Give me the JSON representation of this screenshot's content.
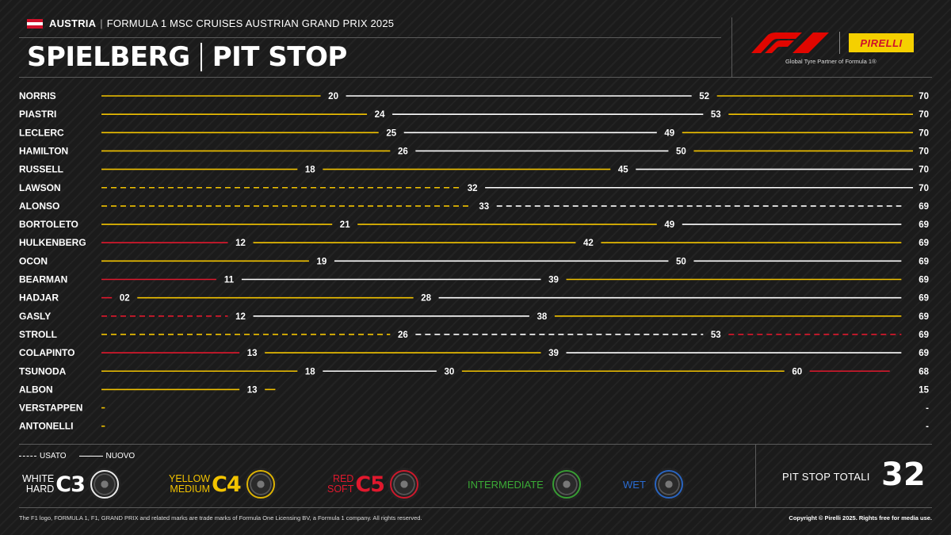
{
  "header": {
    "country": "AUSTRIA",
    "separator": "|",
    "event": "FORMULA 1 MSC CRUISES AUSTRIAN GRAND PRIX 2025",
    "title_left": "SPIELBERG",
    "title_right": "PIT STOP"
  },
  "brand": {
    "partner_label": "PIRELLI",
    "tagline": "Global Tyre Partner of Formula 1®"
  },
  "colors": {
    "hard": "#ffffff",
    "medium": "#f2c300",
    "soft": "#e0182d",
    "intermediate": "#3aaa35",
    "wet": "#2a6bd1"
  },
  "chart_data": {
    "type": "pit-stop-strategy",
    "x_range": [
      0,
      70
    ],
    "drivers": [
      {
        "name": "NORRIS",
        "stints": [
          {
            "compound": "medium",
            "used": false,
            "end": 20
          },
          {
            "compound": "hard",
            "used": false,
            "end": 52
          },
          {
            "compound": "medium",
            "used": false,
            "end": 70
          }
        ],
        "labels": [
          "20",
          "52",
          "70"
        ]
      },
      {
        "name": "PIASTRI",
        "stints": [
          {
            "compound": "medium",
            "used": false,
            "end": 24
          },
          {
            "compound": "hard",
            "used": false,
            "end": 53
          },
          {
            "compound": "medium",
            "used": false,
            "end": 70
          }
        ],
        "labels": [
          "24",
          "53",
          "70"
        ]
      },
      {
        "name": "LECLERC",
        "stints": [
          {
            "compound": "medium",
            "used": false,
            "end": 25
          },
          {
            "compound": "hard",
            "used": false,
            "end": 49
          },
          {
            "compound": "medium",
            "used": false,
            "end": 70
          }
        ],
        "labels": [
          "25",
          "49",
          "70"
        ]
      },
      {
        "name": "HAMILTON",
        "stints": [
          {
            "compound": "medium",
            "used": false,
            "end": 26
          },
          {
            "compound": "hard",
            "used": false,
            "end": 50
          },
          {
            "compound": "medium",
            "used": false,
            "end": 70
          }
        ],
        "labels": [
          "26",
          "50",
          "70"
        ]
      },
      {
        "name": "RUSSELL",
        "stints": [
          {
            "compound": "medium",
            "used": false,
            "end": 18
          },
          {
            "compound": "medium",
            "used": false,
            "end": 45
          },
          {
            "compound": "hard",
            "used": false,
            "end": 70
          }
        ],
        "labels": [
          "18",
          "45",
          "70"
        ]
      },
      {
        "name": "LAWSON",
        "stints": [
          {
            "compound": "medium",
            "used": true,
            "end": 32
          },
          {
            "compound": "hard",
            "used": false,
            "end": 70
          }
        ],
        "labels": [
          "32",
          "70"
        ]
      },
      {
        "name": "ALONSO",
        "stints": [
          {
            "compound": "medium",
            "used": true,
            "end": 33
          },
          {
            "compound": "hard",
            "used": true,
            "end": 69
          }
        ],
        "labels": [
          "33",
          "69"
        ]
      },
      {
        "name": "BORTOLETO",
        "stints": [
          {
            "compound": "medium",
            "used": false,
            "end": 21
          },
          {
            "compound": "medium",
            "used": false,
            "end": 49
          },
          {
            "compound": "hard",
            "used": false,
            "end": 69
          }
        ],
        "labels": [
          "21",
          "49",
          "69"
        ]
      },
      {
        "name": "HULKENBERG",
        "stints": [
          {
            "compound": "soft",
            "used": false,
            "end": 12
          },
          {
            "compound": "medium",
            "used": false,
            "end": 42
          },
          {
            "compound": "medium",
            "used": false,
            "end": 69
          }
        ],
        "labels": [
          "12",
          "42",
          "69"
        ]
      },
      {
        "name": "OCON",
        "stints": [
          {
            "compound": "medium",
            "used": false,
            "end": 19
          },
          {
            "compound": "hard",
            "used": false,
            "end": 50
          },
          {
            "compound": "hard",
            "used": false,
            "end": 69
          }
        ],
        "labels": [
          "19",
          "50",
          "69"
        ]
      },
      {
        "name": "BEARMAN",
        "stints": [
          {
            "compound": "soft",
            "used": false,
            "end": 11
          },
          {
            "compound": "hard",
            "used": false,
            "end": 39
          },
          {
            "compound": "medium",
            "used": false,
            "end": 69
          }
        ],
        "labels": [
          "11",
          "39",
          "69"
        ]
      },
      {
        "name": "HADJAR",
        "stints": [
          {
            "compound": "soft",
            "used": false,
            "end": 2
          },
          {
            "compound": "medium",
            "used": false,
            "end": 28
          },
          {
            "compound": "hard",
            "used": false,
            "end": 69
          }
        ],
        "labels": [
          "02",
          "28",
          "69"
        ]
      },
      {
        "name": "GASLY",
        "stints": [
          {
            "compound": "soft",
            "used": true,
            "end": 12
          },
          {
            "compound": "hard",
            "used": false,
            "end": 38
          },
          {
            "compound": "medium",
            "used": false,
            "end": 69
          }
        ],
        "labels": [
          "12",
          "38",
          "69"
        ]
      },
      {
        "name": "STROLL",
        "stints": [
          {
            "compound": "medium",
            "used": true,
            "end": 26
          },
          {
            "compound": "hard",
            "used": true,
            "end": 53
          },
          {
            "compound": "soft",
            "used": true,
            "end": 69
          }
        ],
        "labels": [
          "26",
          "53",
          "69"
        ]
      },
      {
        "name": "COLAPINTO",
        "stints": [
          {
            "compound": "soft",
            "used": false,
            "end": 13
          },
          {
            "compound": "medium",
            "used": false,
            "end": 39
          },
          {
            "compound": "hard",
            "used": false,
            "end": 69
          }
        ],
        "labels": [
          "13",
          "39",
          "69"
        ]
      },
      {
        "name": "TSUNODA",
        "stints": [
          {
            "compound": "medium",
            "used": false,
            "end": 18
          },
          {
            "compound": "hard",
            "used": false,
            "end": 30
          },
          {
            "compound": "medium",
            "used": false,
            "end": 60
          },
          {
            "compound": "soft",
            "used": false,
            "end": 68
          }
        ],
        "labels": [
          "18",
          "30",
          "60",
          "68"
        ]
      },
      {
        "name": "ALBON",
        "stints": [
          {
            "compound": "medium",
            "used": false,
            "end": 13
          },
          {
            "compound": "medium",
            "used": false,
            "end": 15
          }
        ],
        "labels": [
          "13",
          "15"
        ]
      },
      {
        "name": "VERSTAPPEN",
        "stints": [
          {
            "compound": "medium",
            "used": false,
            "end": 0.3
          }
        ],
        "labels": [
          "-"
        ]
      },
      {
        "name": "ANTONELLI",
        "stints": [
          {
            "compound": "medium",
            "used": false,
            "end": 0.3
          }
        ],
        "labels": [
          "-"
        ]
      }
    ]
  },
  "legend": {
    "used_label": "USATO",
    "new_label": "NUOVO",
    "compounds": [
      {
        "line1": "WHITE",
        "line2": "HARD",
        "code": "C3",
        "color": "#ffffff"
      },
      {
        "line1": "YELLOW",
        "line2": "MEDIUM",
        "code": "C4",
        "color": "#f2c300"
      },
      {
        "line1": "RED",
        "line2": "SOFT",
        "code": "C5",
        "color": "#e0182d"
      },
      {
        "label": "INTERMEDIATE",
        "color": "#3aaa35"
      },
      {
        "label": "WET",
        "color": "#2a6bd1"
      }
    ]
  },
  "totals": {
    "label": "PIT STOP TOTALI",
    "value": "32"
  },
  "footer": {
    "disclaimer": "The F1 logo, FORMULA 1, F1, GRAND PRIX and related marks are trade marks of Formula One Licensing BV, a Formula 1 company. All rights reserved.",
    "copyright": "Copyright © Pirelli 2025. Rights free for media use."
  }
}
